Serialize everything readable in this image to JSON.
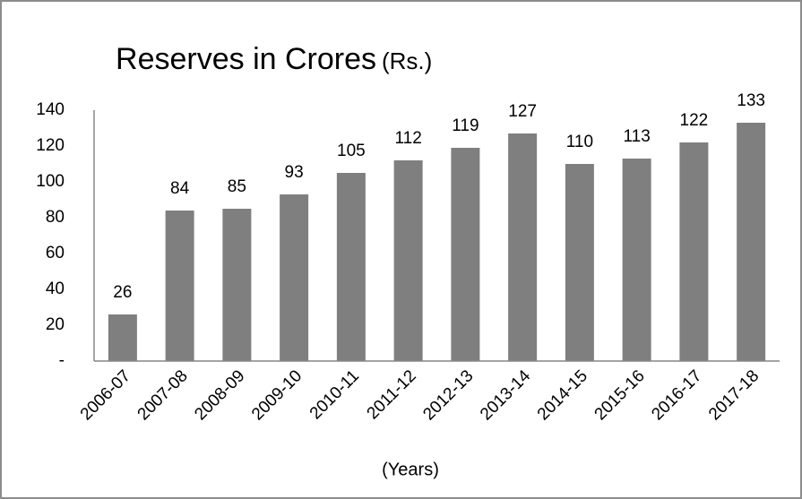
{
  "chart_data": {
    "type": "bar",
    "title": "Reserves in Crores",
    "title_unit": "(Rs.)",
    "x_label": "(Years)",
    "categories": [
      "2006-07",
      "2007-08",
      "2008-09",
      "2009-10",
      "2010-11",
      "2011-12",
      "2012-13",
      "2013-14",
      "2014-15",
      "2015-16",
      "2016-17",
      "2017-18"
    ],
    "values": [
      26,
      84,
      85,
      93,
      105,
      112,
      119,
      127,
      110,
      113,
      122,
      133
    ],
    "color": "#7f7f7f",
    "ylim": [
      0,
      140
    ],
    "yticks": [
      {
        "value": 0,
        "label": "-"
      },
      20,
      40,
      60,
      80,
      100,
      120,
      140
    ],
    "grid": false
  }
}
